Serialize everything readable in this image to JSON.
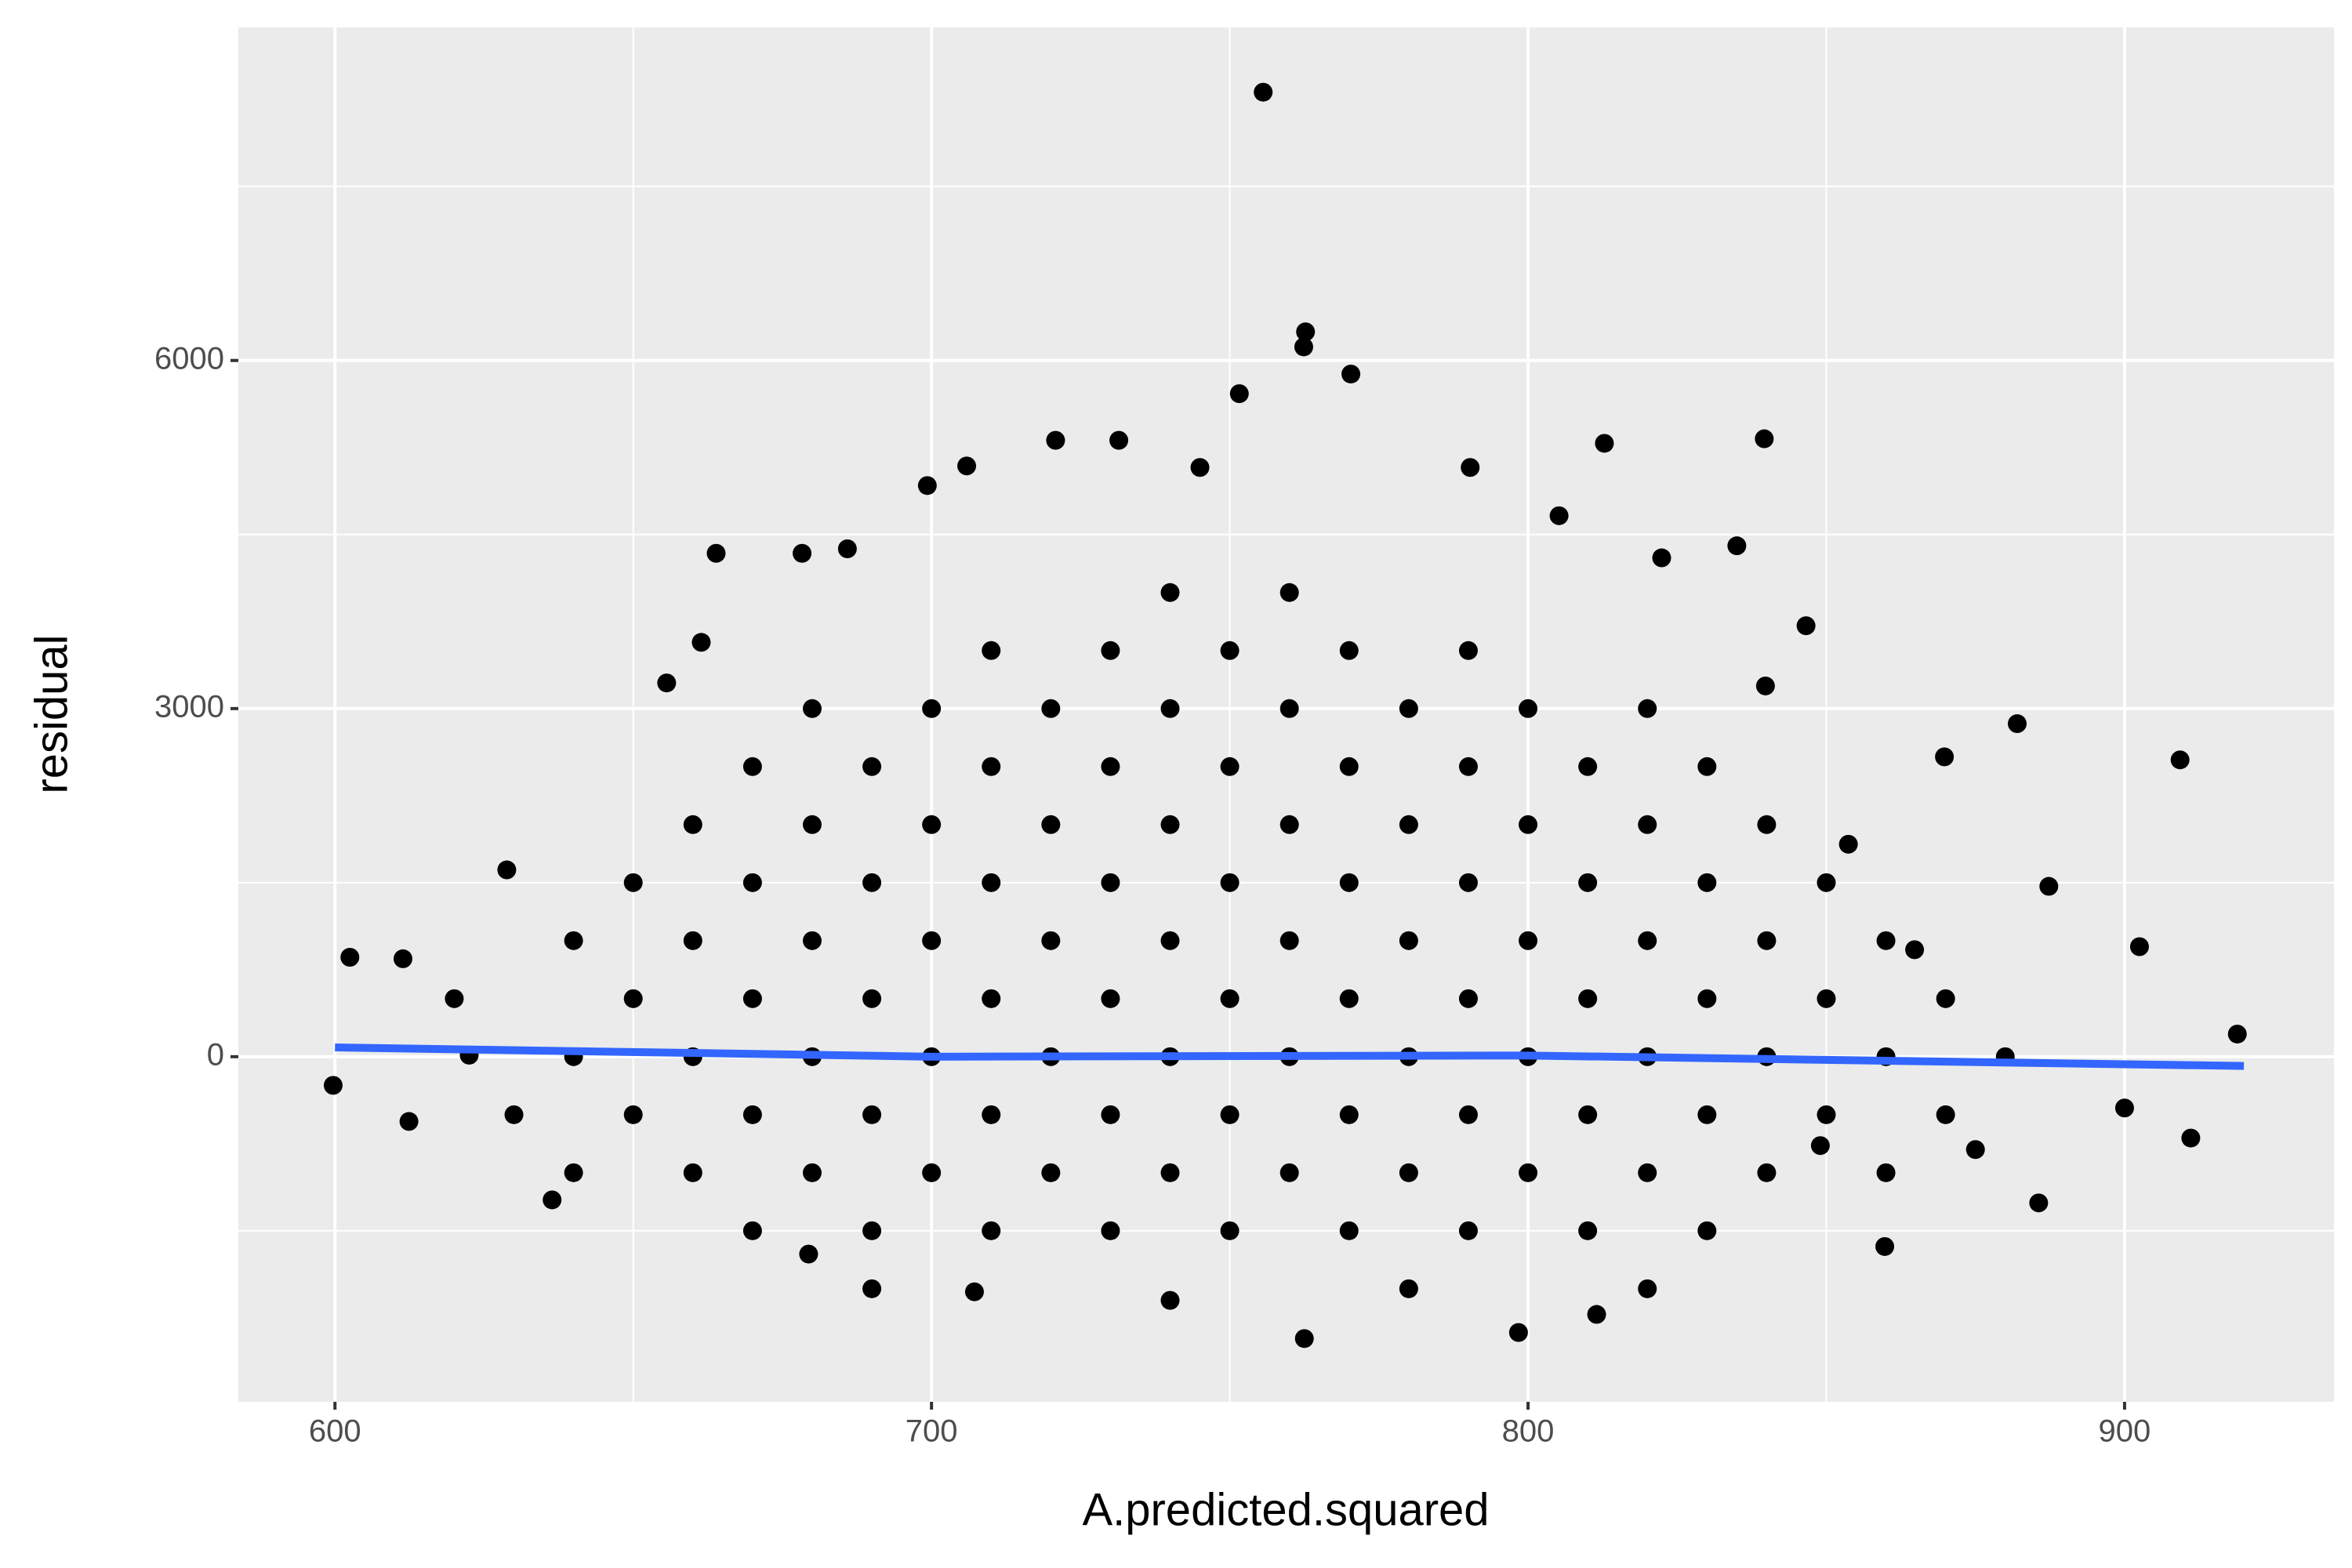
{
  "chart_data": {
    "type": "scatter",
    "x_label": "A.predicted.squared",
    "y_label": "residual",
    "color": "#000000",
    "x": [
      640,
      640,
      640,
      650,
      650,
      650,
      660,
      660,
      660,
      660,
      670,
      670,
      670,
      670,
      670,
      680,
      680,
      680,
      680,
      680,
      690,
      690,
      690,
      690,
      690,
      700,
      700,
      700,
      700,
      700,
      710,
      710,
      710,
      710,
      710,
      710,
      720,
      720,
      720,
      720,
      720,
      730,
      730,
      730,
      730,
      730,
      730,
      740,
      740,
      740,
      740,
      740,
      740,
      750,
      750,
      750,
      750,
      750,
      750,
      760,
      760,
      760,
      760,
      760,
      760,
      770,
      770,
      770,
      770,
      770,
      770,
      780,
      780,
      780,
      780,
      780,
      790,
      790,
      790,
      790,
      790,
      790,
      800,
      800,
      800,
      800,
      800,
      810,
      810,
      810,
      810,
      810,
      820,
      820,
      820,
      820,
      820,
      830,
      830,
      830,
      830,
      830,
      840,
      840,
      840,
      840,
      850,
      850,
      850,
      860,
      860,
      860,
      870,
      870,
      755.6,
      762.7,
      762.4,
      770.3,
      751.6,
      720.8,
      731.4,
      812.8,
      839.6,
      705.9,
      790.3,
      745,
      699.3,
      805.2,
      663.9,
      678.3,
      685.9,
      835,
      822.4,
      882,
      909.3,
      869.8,
      887.3,
      902.5,
      918.9,
      911.1,
      900,
      885.6,
      599.7,
      602.5,
      762.5,
      798.4,
      811.5,
      707.2,
      679.4,
      636.4,
      611.4,
      628.8,
      655.6,
      661.4,
      859.8,
      849,
      864.8,
      853.7,
      846.6,
      839.8,
      622.5,
      612.4,
      630,
      620,
      875,
      880,
      690,
      740,
      780,
      820
    ],
    "values": [
      -1000,
      0,
      1000,
      -500,
      500,
      1500,
      -1000,
      0,
      1000,
      2000,
      -1500,
      -500,
      500,
      1500,
      2500,
      -1000,
      0,
      1000,
      2000,
      3000,
      -1500,
      -500,
      500,
      1500,
      2500,
      -1000,
      0,
      1000,
      2000,
      3000,
      -1500,
      -500,
      500,
      1500,
      2500,
      3500,
      -1000,
      0,
      1000,
      2000,
      3000,
      -1500,
      -500,
      500,
      1500,
      2500,
      3500,
      -1000,
      0,
      1000,
      2000,
      3000,
      4000,
      -1500,
      -500,
      500,
      1500,
      2500,
      3500,
      -1000,
      0,
      1000,
      2000,
      3000,
      4000,
      -1500,
      -500,
      500,
      1500,
      2500,
      3500,
      -1000,
      0,
      1000,
      2000,
      3000,
      -1500,
      -500,
      500,
      1500,
      2500,
      3500,
      -1000,
      0,
      1000,
      2000,
      3000,
      -1500,
      -500,
      500,
      1500,
      2500,
      -1000,
      0,
      1000,
      2000,
      3000,
      -1500,
      -500,
      500,
      1500,
      2500,
      -1000,
      0,
      1000,
      2000,
      -500,
      500,
      1500,
      -1000,
      0,
      1000,
      -500,
      500,
      8312,
      6247,
      6117,
      5883,
      5714,
      5312,
      5312,
      5286,
      5325,
      5091,
      5078,
      5078,
      4922,
      4662,
      4338,
      4338,
      4377,
      4403,
      4299,
      2870,
      2558,
      2584,
      1468,
      948,
      195,
      -701,
      -442,
      -1260,
      -247,
      857,
      -2429,
      -2377,
      -2221,
      -2026,
      -1701,
      -1234,
      844,
      1610,
      3221,
      3571,
      -1636,
      -766,
      922,
      1831,
      3714,
      3195,
      13,
      -558,
      -500,
      500,
      -800,
      0,
      -2000,
      -2100,
      -2000,
      -2000
    ],
    "trend": {
      "color": "#3366FF",
      "x": [
        600,
        700,
        800,
        920
      ],
      "values": [
        80,
        0,
        10,
        -80
      ]
    },
    "xlim": [
      583.8,
      935.1
    ],
    "xticks": [
      600,
      700,
      800,
      900
    ],
    "x_minor_grid": [
      650,
      750,
      850
    ],
    "ylim": [
      -2974,
      8870
    ],
    "yticks": [
      0,
      3000,
      6000
    ],
    "y_minor_grid": [
      -1500,
      1500,
      4500,
      7500
    ],
    "grid": true
  }
}
